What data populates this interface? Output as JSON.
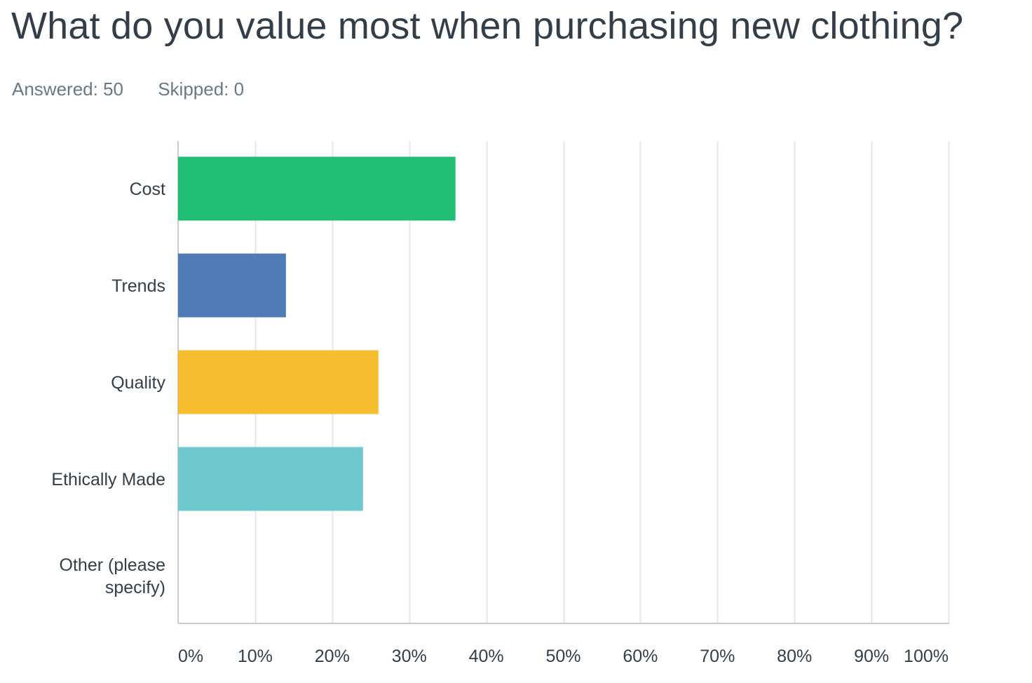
{
  "question": "What do you value most when purchasing new clothing?",
  "stats": {
    "answered": "Answered: 50",
    "skipped": "Skipped: 0"
  },
  "chart_data": {
    "type": "bar",
    "orientation": "horizontal",
    "categories": [
      {
        "lines": [
          "Cost"
        ],
        "value": 36,
        "color": "#1fbe73"
      },
      {
        "lines": [
          "Trends"
        ],
        "value": 14,
        "color": "#507cb6"
      },
      {
        "lines": [
          "Quality"
        ],
        "value": 26,
        "color": "#f6bd2f"
      },
      {
        "lines": [
          "Ethically Made"
        ],
        "value": 24,
        "color": "#6fc8cd"
      },
      {
        "lines": [
          "Other (please",
          "specify)"
        ],
        "value": 0,
        "color": "#d0d2d3"
      }
    ],
    "xlim": [
      0,
      100
    ],
    "xticks": [
      "0%",
      "10%",
      "20%",
      "30%",
      "40%",
      "50%",
      "60%",
      "70%",
      "80%",
      "90%",
      "100%"
    ],
    "grid": true,
    "gridColor": "#e6e7e8",
    "axisColor": "#c9ccce"
  }
}
